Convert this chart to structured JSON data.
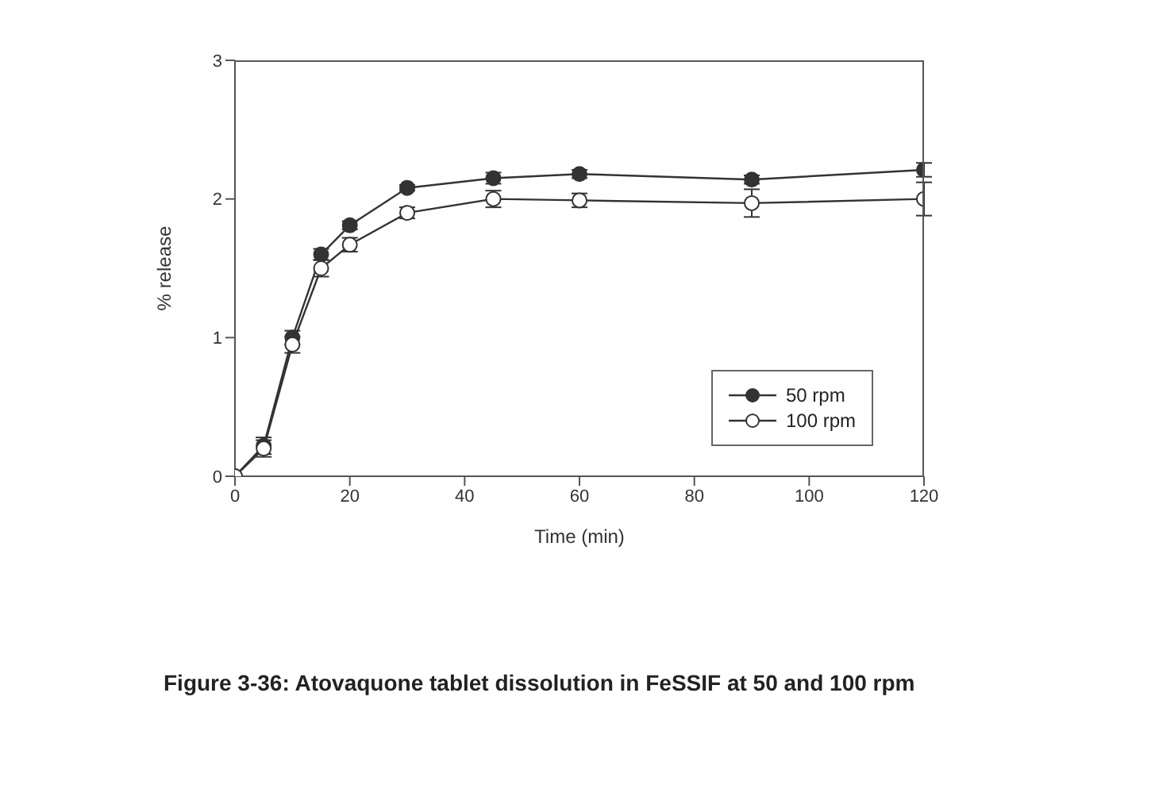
{
  "chart_data": {
    "type": "line",
    "title": "Figure 3-36: Atovaquone tablet dissolution in FeSSIF at 50 and 100 rpm",
    "xlabel": "Time (min)",
    "ylabel": "% release",
    "x": [
      0,
      5,
      10,
      15,
      20,
      30,
      45,
      60,
      90,
      120
    ],
    "series": [
      {
        "name": "50 rpm",
        "color": "#333333",
        "values": [
          0,
          0.22,
          1.0,
          1.6,
          1.81,
          2.08,
          2.15,
          2.18,
          2.14,
          2.21
        ],
        "errors": [
          null,
          0.06,
          0.05,
          0.04,
          0.03,
          0.02,
          0.04,
          0.03,
          0.03,
          0.05
        ]
      },
      {
        "name": "100 rpm",
        "color": "#ffffff",
        "values": [
          0,
          0.2,
          0.95,
          1.5,
          1.67,
          1.9,
          2.0,
          1.99,
          1.97,
          2.0
        ],
        "errors": [
          null,
          0.06,
          0.06,
          0.06,
          0.05,
          0.04,
          0.06,
          0.05,
          0.1,
          0.12
        ]
      }
    ],
    "xlim": [
      0,
      120
    ],
    "xticks": [
      0,
      20,
      40,
      60,
      80,
      100,
      120
    ],
    "ylim": [
      0,
      3
    ],
    "yticks": [
      0,
      1,
      2,
      3
    ],
    "grid": false,
    "legend": "right",
    "marker": "circle",
    "line_style": "solid"
  }
}
